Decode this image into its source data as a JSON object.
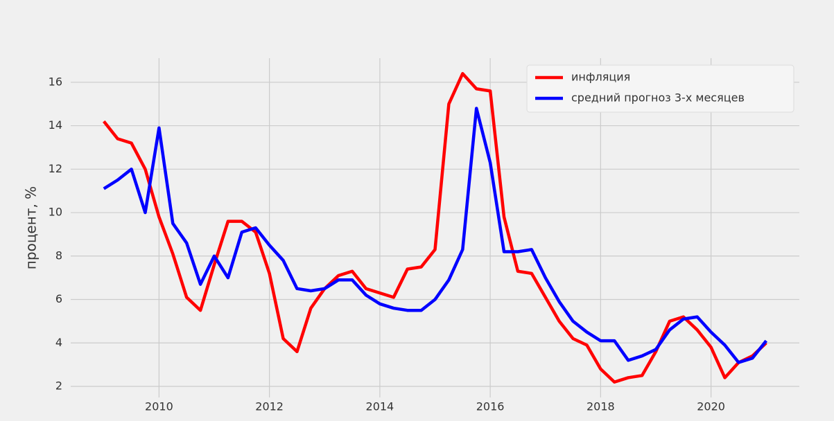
{
  "chart_data": {
    "type": "line",
    "ylabel": "процент, %",
    "x": [
      2009,
      2009.25,
      2009.5,
      2009.75,
      2010,
      2010.25,
      2010.5,
      2010.75,
      2011,
      2011.25,
      2011.5,
      2011.75,
      2012,
      2012.25,
      2012.5,
      2012.75,
      2013,
      2013.25,
      2013.5,
      2013.75,
      2014,
      2014.25,
      2014.5,
      2014.75,
      2015,
      2015.25,
      2015.5,
      2015.75,
      2016,
      2016.25,
      2016.5,
      2016.75,
      2017,
      2017.25,
      2017.5,
      2017.75,
      2018,
      2018.25,
      2018.5,
      2018.75,
      2019,
      2019.25,
      2019.5,
      2019.75,
      2020,
      2020.25,
      2020.5,
      2020.75,
      2021
    ],
    "series": [
      {
        "name": "инфляция",
        "color": "#ff0000",
        "values": [
          14.2,
          13.4,
          13.2,
          12.0,
          9.8,
          8.1,
          6.1,
          5.5,
          7.6,
          9.6,
          9.6,
          9.1,
          7.2,
          4.2,
          3.6,
          5.6,
          6.5,
          7.1,
          7.3,
          6.5,
          6.3,
          6.1,
          7.4,
          7.5,
          8.3,
          15.0,
          16.4,
          15.7,
          15.6,
          9.8,
          7.3,
          7.2,
          6.1,
          5.0,
          4.2,
          3.9,
          2.8,
          2.2,
          2.4,
          2.5,
          3.6,
          5.0,
          5.2,
          4.6,
          3.8,
          2.4,
          3.1,
          3.4,
          4.0
        ]
      },
      {
        "name": "средний прогноз 3-х месяцев",
        "color": "#0000ff",
        "values": [
          11.1,
          11.5,
          12.0,
          10.0,
          13.9,
          9.5,
          8.6,
          6.7,
          8.0,
          7.0,
          9.1,
          9.3,
          8.5,
          7.8,
          6.5,
          6.4,
          6.5,
          6.9,
          6.9,
          6.2,
          5.8,
          5.6,
          5.5,
          5.5,
          6.0,
          6.9,
          8.3,
          14.8,
          12.3,
          8.2,
          8.2,
          8.3,
          7.0,
          5.9,
          5.0,
          4.5,
          4.1,
          4.1,
          3.2,
          3.4,
          3.7,
          4.6,
          5.1,
          5.2,
          4.5,
          3.9,
          3.1,
          3.3,
          4.1
        ]
      }
    ],
    "xlim": [
      2008.4,
      2021.6
    ],
    "xticks": [
      2010,
      2012,
      2014,
      2016,
      2018,
      2020
    ],
    "ylim": [
      1.49,
      17.11
    ],
    "yticks": [
      2,
      4,
      6,
      8,
      10,
      12,
      14,
      16
    ],
    "grid": true,
    "legend": "upper right"
  }
}
